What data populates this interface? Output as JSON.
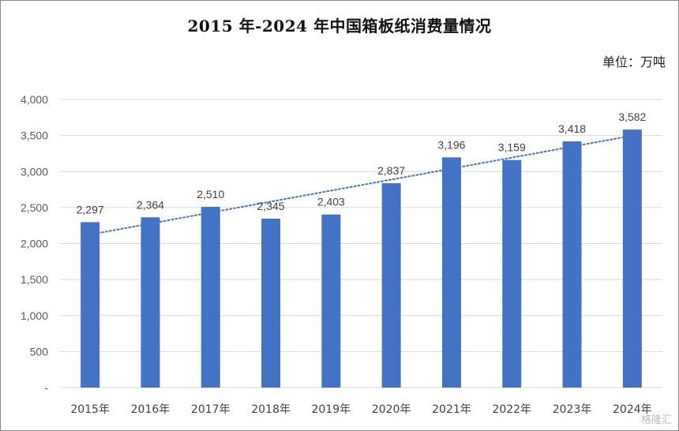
{
  "chart_data": {
    "type": "bar",
    "title": "2015 年-2024 年中国箱板纸消费量情况",
    "unit_label": "单位：万吨",
    "categories": [
      "2015年",
      "2016年",
      "2017年",
      "2018年",
      "2019年",
      "2020年",
      "2021年",
      "2022年",
      "2023年",
      "2024年"
    ],
    "values": [
      2297,
      2364,
      2510,
      2345,
      2403,
      2837,
      3196,
      3159,
      3418,
      3582
    ],
    "data_labels": [
      "2,297",
      "2,364",
      "2,510",
      "2,345",
      "2,403",
      "2,837",
      "3,196",
      "3,159",
      "3,418",
      "3,582"
    ],
    "y_ticks": [
      {
        "value": 0,
        "label": "-"
      },
      {
        "value": 500,
        "label": "500"
      },
      {
        "value": 1000,
        "label": "1,000"
      },
      {
        "value": 1500,
        "label": "1,500"
      },
      {
        "value": 2000,
        "label": "2,000"
      },
      {
        "value": 2500,
        "label": "2,500"
      },
      {
        "value": 3000,
        "label": "3,000"
      },
      {
        "value": 3500,
        "label": "3,500"
      },
      {
        "value": 4000,
        "label": "4,000"
      }
    ],
    "ylim": [
      0,
      4000
    ],
    "grid": true,
    "trendline": "linear dotted",
    "colors": {
      "bar": "#4472c4",
      "trendline": "#4472c4",
      "grid": "#d9d9d9"
    }
  },
  "watermark": "格隆汇"
}
